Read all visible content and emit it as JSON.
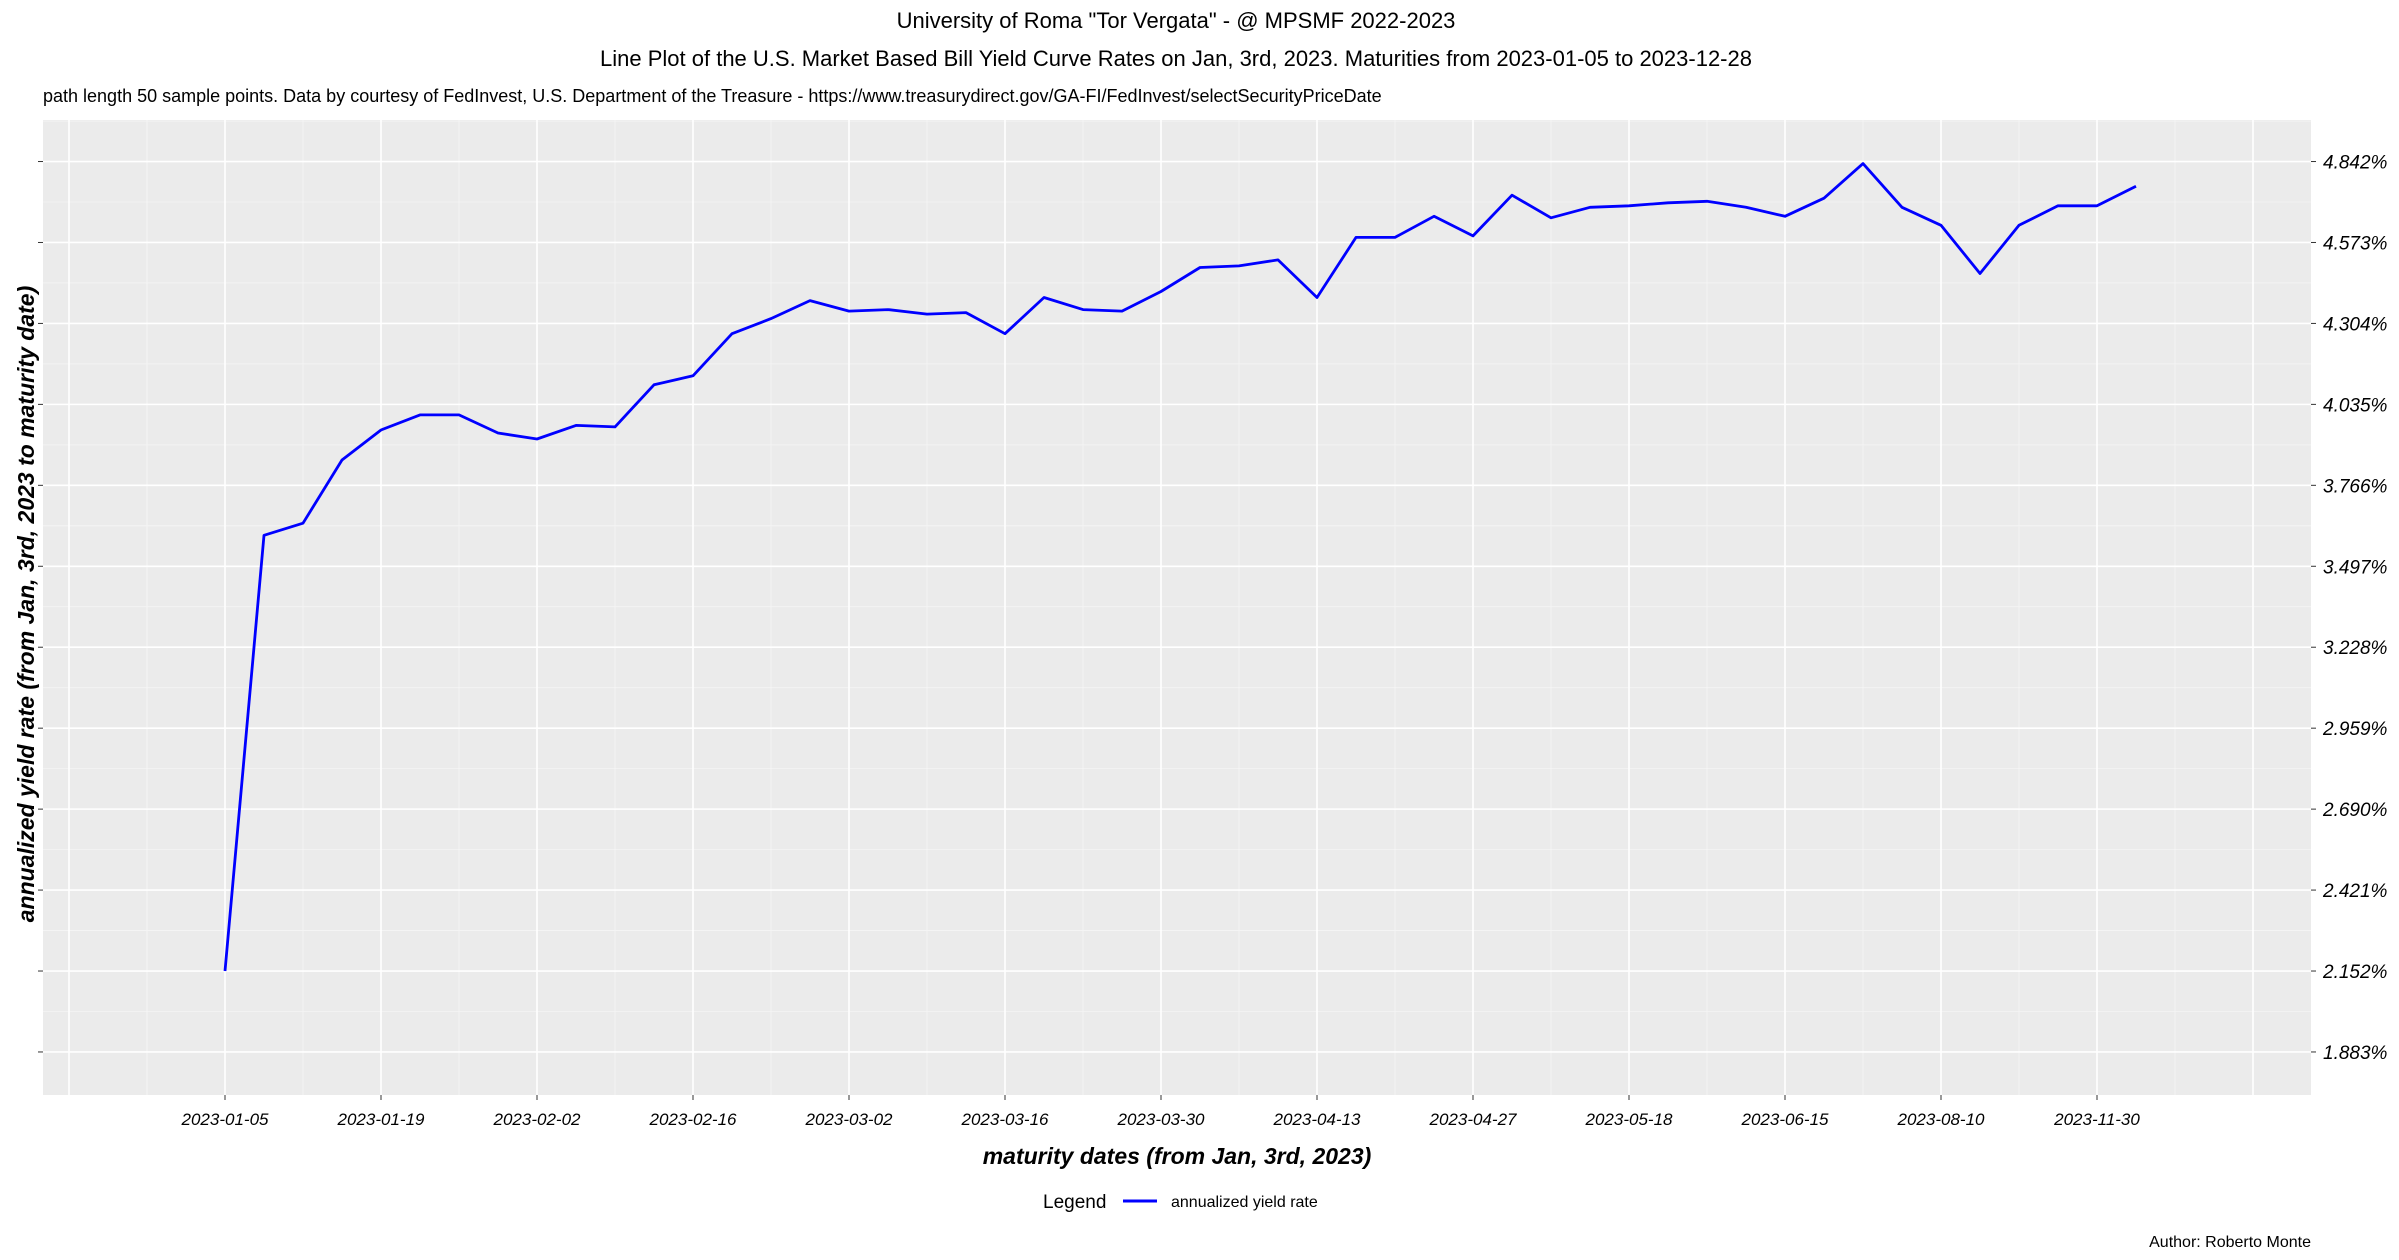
{
  "chart_data": {
    "type": "line",
    "title": "University of Roma \"Tor Vergata\" - @ MPSMF 2022-2023",
    "subtitle": "Line Plot of the U.S. Market Based Bill Yield Curve Rates on Jan, 3rd, 2023. Maturities from 2023-01-05 to 2023-12-28",
    "caption": "path length 50 sample points. Data by courtesy of  FedInvest, U.S. Department of the Treasure  -  https://www.treasurydirect.gov/GA-FI/FedInvest/selectSecurityPriceDate",
    "xlabel": "maturity dates (from Jan, 3rd, 2023)",
    "ylabel": "annualized yield rate (from Jan, 3rd, 2023 to maturity date)",
    "author": "Author: Roberto Monte",
    "legend": {
      "title": "Legend",
      "position": "bottom",
      "entries": [
        "annualized yield rate"
      ]
    },
    "y_axis_position": "right",
    "grid": true,
    "background": "#EBEBEB",
    "line_color": "#0000FF",
    "x_ticks": [
      "2023-01-05",
      "2023-01-19",
      "2023-02-02",
      "2023-02-16",
      "2023-03-02",
      "2023-03-16",
      "2023-03-30",
      "2023-04-13",
      "2023-04-27",
      "2023-05-18",
      "2023-06-15",
      "2023-08-10",
      "2023-11-30"
    ],
    "y_ticks": [
      "1.883%",
      "2.152%",
      "2.421%",
      "2.690%",
      "2.959%",
      "3.228%",
      "3.497%",
      "3.766%",
      "4.035%",
      "4.304%",
      "4.573%",
      "4.842%"
    ],
    "ylim": [
      1.74,
      4.98
    ],
    "series": [
      {
        "name": "annualized yield rate",
        "values": [
          2.152,
          3.6,
          3.64,
          3.85,
          3.95,
          4.0,
          4.0,
          3.94,
          3.92,
          3.965,
          3.96,
          4.1,
          4.13,
          4.27,
          4.32,
          4.38,
          4.345,
          4.35,
          4.335,
          4.34,
          4.27,
          4.39,
          4.35,
          4.345,
          4.41,
          4.49,
          4.495,
          4.515,
          4.39,
          4.59,
          4.59,
          4.66,
          4.595,
          4.73,
          4.655,
          4.69,
          4.695,
          4.705,
          4.71,
          4.69,
          4.66,
          4.72,
          4.835,
          4.69,
          4.63,
          4.47,
          4.63,
          4.695,
          4.695,
          4.76
        ]
      }
    ]
  }
}
